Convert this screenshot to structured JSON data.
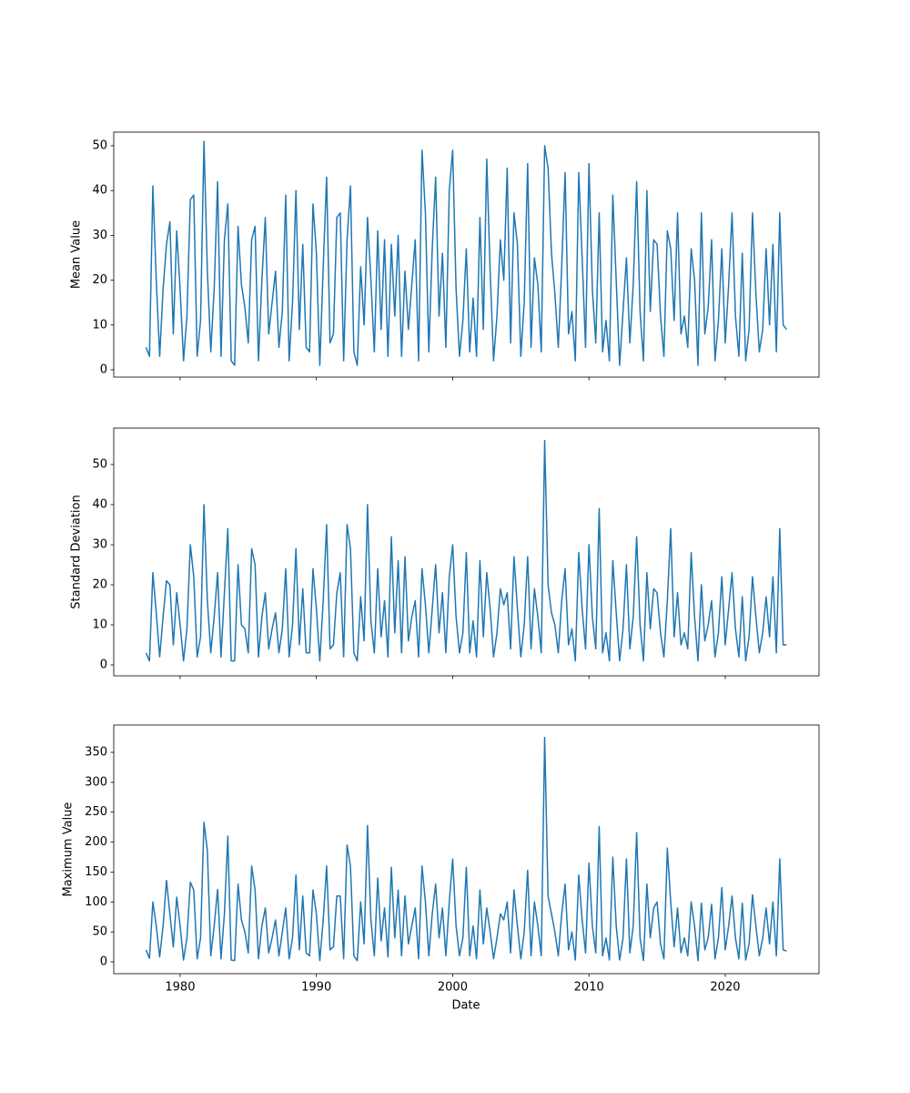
{
  "chart_data": {
    "type": "line",
    "xlabel": "Date",
    "xlim": [
      1975.13,
      2026.88
    ],
    "xticks": [
      1980,
      1990,
      2000,
      2010,
      2020
    ],
    "x": [
      1977.5,
      1977.75,
      1978,
      1978.25,
      1978.5,
      1978.75,
      1979,
      1979.25,
      1979.5,
      1979.75,
      1980,
      1980.25,
      1980.5,
      1980.75,
      1981,
      1981.25,
      1981.5,
      1981.75,
      1982,
      1982.25,
      1982.5,
      1982.75,
      1983,
      1983.25,
      1983.5,
      1983.75,
      1984,
      1984.25,
      1984.5,
      1984.75,
      1985,
      1985.25,
      1985.5,
      1985.75,
      1986,
      1986.25,
      1986.5,
      1986.75,
      1987,
      1987.25,
      1987.5,
      1987.75,
      1988,
      1988.25,
      1988.5,
      1988.75,
      1989,
      1989.25,
      1989.5,
      1989.75,
      1990,
      1990.25,
      1990.5,
      1990.75,
      1991,
      1991.25,
      1991.5,
      1991.75,
      1992,
      1992.25,
      1992.5,
      1992.75,
      1993,
      1993.25,
      1993.5,
      1993.75,
      1994,
      1994.25,
      1994.5,
      1994.75,
      1995,
      1995.25,
      1995.5,
      1995.75,
      1996,
      1996.25,
      1996.5,
      1996.75,
      1997,
      1997.25,
      1997.5,
      1997.75,
      1998,
      1998.25,
      1998.5,
      1998.75,
      1999,
      1999.25,
      1999.5,
      1999.75,
      2000,
      2000.25,
      2000.5,
      2000.75,
      2001,
      2001.25,
      2001.5,
      2001.75,
      2002,
      2002.25,
      2002.5,
      2002.75,
      2003,
      2003.25,
      2003.5,
      2003.75,
      2004,
      2004.25,
      2004.5,
      2004.75,
      2005,
      2005.25,
      2005.5,
      2005.75,
      2006,
      2006.25,
      2006.5,
      2006.75,
      2007,
      2007.25,
      2007.5,
      2007.75,
      2008,
      2008.25,
      2008.5,
      2008.75,
      2009,
      2009.25,
      2009.5,
      2009.75,
      2010,
      2010.25,
      2010.5,
      2010.75,
      2011,
      2011.25,
      2011.5,
      2011.75,
      2012,
      2012.25,
      2012.5,
      2012.75,
      2013,
      2013.25,
      2013.5,
      2013.75,
      2014,
      2014.25,
      2014.5,
      2014.75,
      2015,
      2015.25,
      2015.5,
      2015.75,
      2016,
      2016.25,
      2016.5,
      2016.75,
      2017,
      2017.25,
      2017.5,
      2017.75,
      2018,
      2018.25,
      2018.5,
      2018.75,
      2019,
      2019.25,
      2019.5,
      2019.75,
      2020,
      2020.25,
      2020.5,
      2020.75,
      2021,
      2021.25,
      2021.5,
      2021.75,
      2022,
      2022.25,
      2022.5,
      2022.75,
      2023,
      2023.25,
      2023.5,
      2023.75,
      2024,
      2024.25,
      2024.5
    ],
    "panels": [
      {
        "ylabel": "Mean Value",
        "color": "#1f77b4",
        "ylim": [
          -1.63,
          53.05
        ],
        "yticks": [
          0,
          10,
          20,
          30,
          40,
          50
        ],
        "values": [
          5,
          3,
          41,
          20,
          3,
          18,
          28,
          33,
          8,
          31,
          18,
          2,
          12,
          38,
          39,
          3,
          11,
          51,
          22,
          4,
          18,
          42,
          3,
          29,
          37,
          2,
          1,
          32,
          19,
          14,
          6,
          29,
          32,
          2,
          20,
          34,
          8,
          15,
          22,
          5,
          13,
          39,
          2,
          15,
          40,
          9,
          28,
          5,
          4,
          37,
          26,
          1,
          23,
          43,
          6,
          8,
          34,
          35,
          2,
          29,
          41,
          4,
          1,
          23,
          10,
          34,
          20,
          4,
          31,
          9,
          29,
          3,
          28,
          12,
          30,
          3,
          22,
          9,
          19,
          29,
          2,
          49,
          35,
          4,
          27,
          43,
          12,
          26,
          5,
          40,
          49,
          18,
          3,
          11,
          27,
          4,
          16,
          3,
          34,
          9,
          47,
          22,
          2,
          12,
          29,
          20,
          45,
          6,
          35,
          28,
          3,
          15,
          46,
          5,
          25,
          19,
          4,
          50,
          45,
          26,
          17,
          5,
          23,
          44,
          8,
          13,
          2,
          44,
          25,
          5,
          46,
          18,
          6,
          35,
          4,
          11,
          2,
          39,
          20,
          1,
          13,
          25,
          6,
          19,
          42,
          13,
          2,
          40,
          13,
          29,
          28,
          12,
          3,
          31,
          27,
          11,
          35,
          8,
          12,
          5,
          27,
          20,
          1,
          35,
          8,
          14,
          29,
          2,
          11,
          27,
          6,
          19,
          35,
          12,
          3,
          26,
          2,
          9,
          35,
          17,
          4,
          9,
          27,
          10,
          28,
          4,
          35,
          10,
          9
        ]
      },
      {
        "ylabel": "Standard Deviation",
        "color": "#1f77b4",
        "ylim": [
          -2.73,
          59.1
        ],
        "yticks": [
          0,
          10,
          20,
          30,
          40,
          50
        ],
        "values": [
          3,
          1,
          23,
          13,
          2,
          12,
          21,
          20,
          5,
          18,
          10,
          1,
          9,
          30,
          22,
          2,
          7,
          40,
          16,
          3,
          12,
          23,
          2,
          18,
          34,
          1,
          1,
          25,
          10,
          9,
          3,
          29,
          25,
          2,
          12,
          18,
          4,
          9,
          13,
          3,
          9,
          24,
          2,
          10,
          29,
          5,
          19,
          3,
          3,
          24,
          14,
          1,
          16,
          35,
          4,
          5,
          18,
          23,
          2,
          35,
          29,
          3,
          1,
          17,
          6,
          40,
          11,
          3,
          24,
          7,
          16,
          2,
          32,
          8,
          26,
          3,
          27,
          6,
          12,
          16,
          2,
          24,
          15,
          3,
          14,
          25,
          8,
          18,
          3,
          22,
          30,
          12,
          3,
          8,
          28,
          3,
          11,
          2,
          26,
          7,
          23,
          14,
          2,
          8,
          19,
          15,
          18,
          4,
          27,
          14,
          2,
          10,
          27,
          4,
          19,
          12,
          3,
          56,
          20,
          13,
          10,
          3,
          16,
          24,
          5,
          9,
          1,
          28,
          14,
          4,
          30,
          12,
          4,
          39,
          3,
          8,
          1,
          26,
          13,
          1,
          9,
          25,
          4,
          12,
          32,
          10,
          1,
          23,
          9,
          19,
          18,
          8,
          2,
          16,
          34,
          7,
          18,
          5,
          8,
          4,
          28,
          12,
          1,
          20,
          6,
          10,
          16,
          2,
          8,
          22,
          5,
          14,
          23,
          9,
          2,
          17,
          1,
          7,
          22,
          12,
          3,
          8,
          17,
          7,
          22,
          3,
          34,
          5,
          5
        ]
      },
      {
        "ylabel": "Maximum Value",
        "color": "#1f77b4",
        "ylim": [
          -19.8,
          395.7
        ],
        "yticks": [
          0,
          50,
          100,
          150,
          200,
          250,
          300,
          350
        ],
        "values": [
          20,
          6,
          100,
          60,
          8,
          60,
          136,
          80,
          25,
          108,
          60,
          3,
          40,
          133,
          120,
          5,
          40,
          233,
          186,
          10,
          60,
          121,
          5,
          80,
          210,
          3,
          2,
          130,
          70,
          50,
          15,
          160,
          120,
          5,
          60,
          90,
          15,
          40,
          70,
          10,
          50,
          90,
          5,
          40,
          145,
          20,
          110,
          15,
          10,
          120,
          80,
          2,
          70,
          160,
          20,
          25,
          110,
          110,
          5,
          195,
          160,
          10,
          2,
          100,
          30,
          228,
          70,
          10,
          140,
          35,
          90,
          8,
          158,
          40,
          120,
          10,
          110,
          30,
          60,
          90,
          5,
          160,
          100,
          10,
          80,
          130,
          40,
          90,
          10,
          100,
          172,
          60,
          10,
          40,
          158,
          10,
          60,
          5,
          120,
          30,
          90,
          50,
          5,
          40,
          80,
          70,
          100,
          15,
          120,
          60,
          5,
          50,
          153,
          10,
          100,
          60,
          10,
          375,
          110,
          80,
          50,
          10,
          80,
          130,
          20,
          50,
          3,
          145,
          70,
          15,
          165,
          60,
          15,
          226,
          10,
          40,
          3,
          175,
          60,
          3,
          40,
          172,
          15,
          60,
          216,
          40,
          2,
          130,
          40,
          90,
          100,
          30,
          5,
          190,
          100,
          25,
          90,
          15,
          40,
          10,
          100,
          60,
          2,
          98,
          20,
          40,
          96,
          5,
          40,
          124,
          20,
          60,
          110,
          40,
          5,
          98,
          3,
          30,
          112,
          60,
          10,
          40,
          90,
          30,
          100,
          10,
          172,
          20,
          18
        ]
      }
    ]
  }
}
